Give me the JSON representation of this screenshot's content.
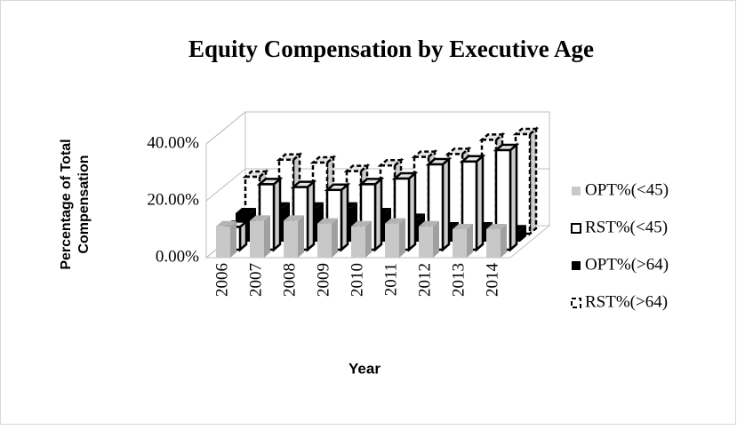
{
  "chart_data": {
    "type": "bar3d",
    "title": "Equity Compensation by Executive Age",
    "x_label": "Year",
    "y_label": "Percentage of Total Compensation",
    "categories": [
      "2006",
      "2007",
      "2008",
      "2009",
      "2010",
      "2011",
      "2012",
      "2013",
      "2014"
    ],
    "series": [
      {
        "name": "OPT%(<45)",
        "color": "#c8c8c8",
        "values": [
          11,
          13,
          13,
          12,
          11,
          12,
          11,
          10,
          10
        ]
      },
      {
        "name": "RST%(<45)",
        "color": "#ffffff",
        "values": [
          8,
          23,
          22,
          21,
          23,
          25,
          30,
          31,
          35
        ]
      },
      {
        "name": "OPT%(>64)",
        "color": "#000000",
        "values": [
          10,
          12,
          12,
          12,
          10,
          8,
          5,
          5,
          4
        ]
      },
      {
        "name": "RST%(>64)",
        "color": "#ffffff",
        "values": [
          20,
          26,
          25,
          22,
          24,
          27,
          28,
          33,
          35
        ]
      }
    ],
    "ylim": [
      0,
      40
    ],
    "yticks": [
      {
        "value": 0,
        "label": "0.00%"
      },
      {
        "value": 20,
        "label": "20.00%"
      },
      {
        "value": 40,
        "label": "40.00%"
      }
    ],
    "grid": true
  }
}
